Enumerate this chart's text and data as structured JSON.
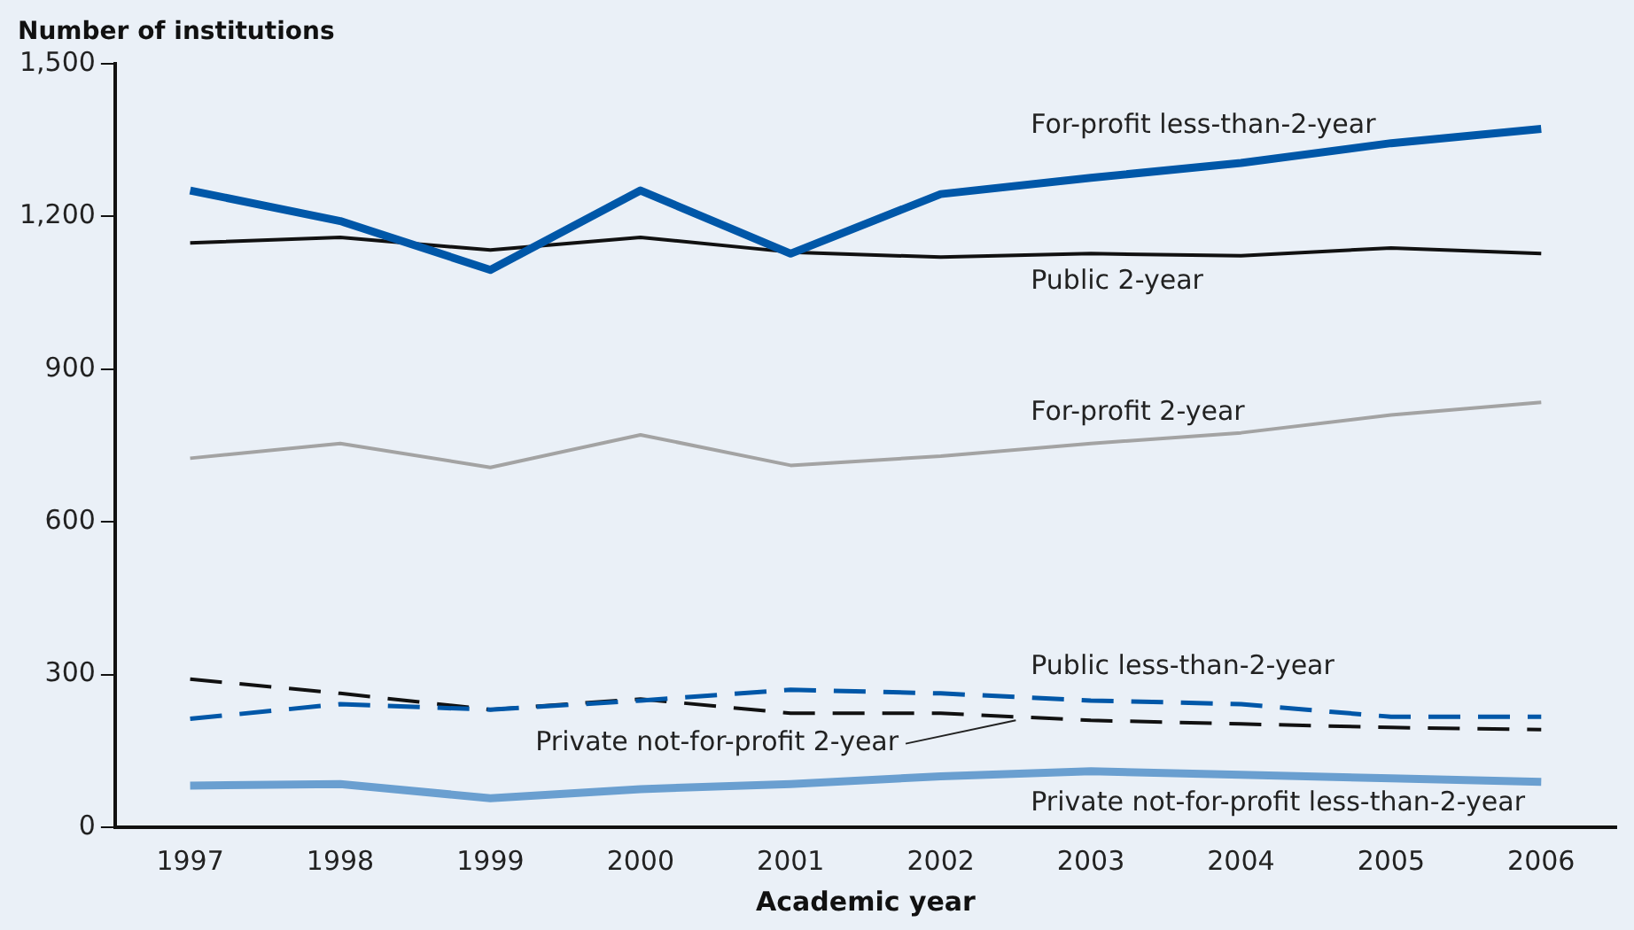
{
  "chart_data": {
    "type": "line",
    "xlabel": "Academic year",
    "ylabel": "Number of institutions",
    "categories": [
      "1997",
      "1998",
      "1999",
      "2000",
      "2001",
      "2002",
      "2003",
      "2004",
      "2005",
      "2006"
    ],
    "ylim": [
      0,
      1500
    ],
    "yticks": [
      0,
      {
        "value": 300,
        "label": "300"
      },
      {
        "value": 600,
        "label": "600"
      },
      {
        "value": 900,
        "label": "900"
      },
      {
        "value": 1200,
        "label": "1,200"
      },
      {
        "value": 1500,
        "label": "1,500"
      }
    ],
    "grid": false,
    "legend": false,
    "marker": "none",
    "series": [
      {
        "name": "For-profit less-than-2-year",
        "color": "#0057a8",
        "line_style": "solid",
        "values": [
          1251,
          1191,
          1095,
          1251,
          1127,
          1244,
          1276,
          1305,
          1344,
          1372
        ]
      },
      {
        "name": "Public 2-year",
        "color": "#111111",
        "line_style": "solid",
        "values": [
          1148,
          1159,
          1134,
          1159,
          1130,
          1120,
          1127,
          1123,
          1138,
          1127
        ]
      },
      {
        "name": "For-profit 2-year",
        "color": "#a3a3a3",
        "line_style": "solid",
        "values": [
          725,
          754,
          707,
          771,
          711,
          729,
          754,
          775,
          810,
          835
        ]
      },
      {
        "name": "Public less-than-2-year",
        "color": "#0057a8",
        "line_style": "dashed",
        "values": [
          213,
          242,
          231,
          249,
          270,
          263,
          249,
          242,
          217,
          217
        ]
      },
      {
        "name": "Private not-for-profit 2-year",
        "color": "#111111",
        "line_style": "dashed",
        "values": [
          291,
          263,
          231,
          252,
          224,
          224,
          210,
          203,
          196,
          192
        ]
      },
      {
        "name": "Private not-for-profit less-than-2-year",
        "color": "#6a9fd0",
        "line_style": "solid",
        "values": [
          82,
          85,
          57,
          75,
          85,
          100,
          110,
          103,
          96,
          89
        ]
      }
    ]
  }
}
